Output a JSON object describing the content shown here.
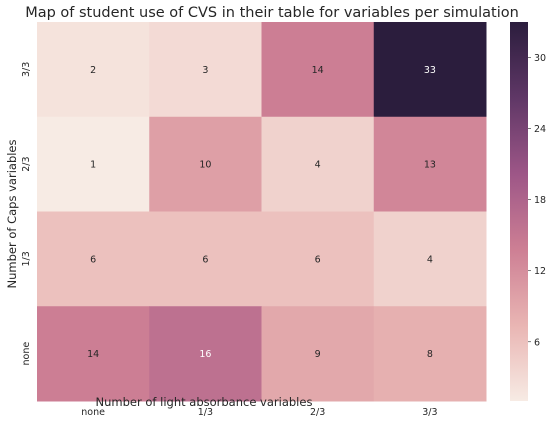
{
  "chart_data": {
    "type": "heatmap",
    "title": "Map of student use of CVS in their table for variables per simulation",
    "xlabel": "Number of light absorbance variables",
    "ylabel": "Number of Caps variables",
    "x_categories": [
      "none",
      "1/3",
      "2/3",
      "3/3"
    ],
    "y_categories": [
      "3/3",
      "2/3",
      "1/3",
      "none"
    ],
    "values": [
      [
        2,
        3,
        14,
        33
      ],
      [
        1,
        10,
        4,
        13
      ],
      [
        6,
        6,
        6,
        4
      ],
      [
        14,
        16,
        9,
        8
      ]
    ],
    "colorbar": {
      "ticks": [
        6,
        12,
        18,
        24,
        30
      ],
      "range": [
        1,
        33
      ]
    },
    "colormap": [
      "#f7ebe4",
      "#e9b5b3",
      "#cd7f94",
      "#9d5687",
      "#5f3766",
      "#2b1d3d"
    ]
  }
}
